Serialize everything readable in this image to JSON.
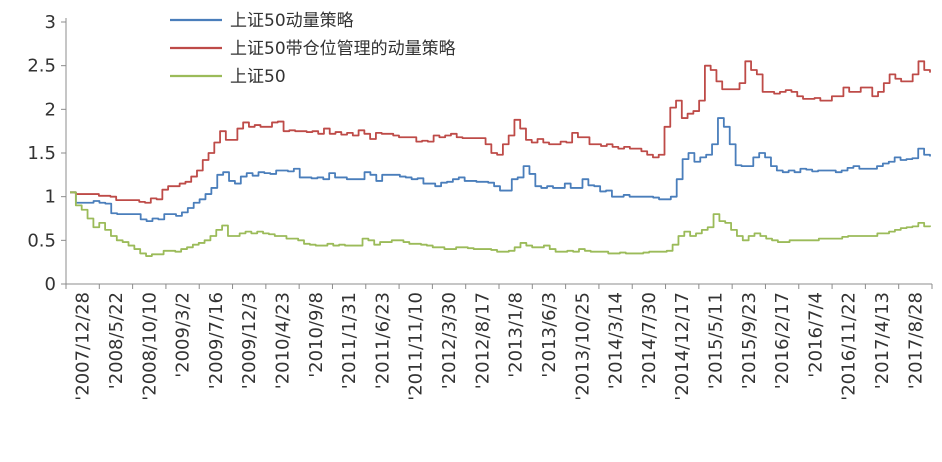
{
  "chart_data": {
    "type": "line",
    "ylim": [
      0,
      3
    ],
    "yticks": [
      0,
      0.5,
      1,
      1.5,
      2,
      2.5,
      3
    ],
    "ytick_labels": [
      "0",
      "0.5",
      "1",
      "1.5",
      "2",
      "2.5",
      "3"
    ],
    "xtick_labels": [
      "'2007/12/28",
      "'2008/5/22",
      "'2008/10/10",
      "'2009/3/2",
      "'2009/7/16",
      "'2009/12/3",
      "'2010/4/23",
      "'2010/9/8",
      "'2011/1/31",
      "'2011/6/23",
      "'2011/11/10",
      "'2012/3/30",
      "'2012/8/17",
      "'2013/1/8",
      "'2013/6/3",
      "'2013/10/25",
      "'2014/3/14",
      "'2014/7/30",
      "'2014/12/17",
      "'2015/5/11",
      "'2015/9/23",
      "'2016/2/17",
      "'2016/7/4",
      "'2016/11/22",
      "'2017/4/13",
      "'2017/8/28"
    ],
    "grid": false,
    "legend_position": "top-left",
    "series": [
      {
        "name": "上证50动量策略",
        "color": "#4a7ebb",
        "values": [
          1.05,
          0.93,
          0.93,
          0.93,
          0.95,
          0.93,
          0.92,
          0.81,
          0.8,
          0.8,
          0.8,
          0.8,
          0.74,
          0.72,
          0.75,
          0.74,
          0.8,
          0.8,
          0.78,
          0.82,
          0.87,
          0.93,
          0.97,
          1.03,
          1.1,
          1.25,
          1.28,
          1.18,
          1.15,
          1.23,
          1.27,
          1.24,
          1.28,
          1.27,
          1.26,
          1.3,
          1.3,
          1.29,
          1.32,
          1.22,
          1.22,
          1.21,
          1.22,
          1.2,
          1.27,
          1.22,
          1.22,
          1.2,
          1.2,
          1.2,
          1.28,
          1.25,
          1.18,
          1.25,
          1.25,
          1.25,
          1.23,
          1.22,
          1.2,
          1.21,
          1.15,
          1.15,
          1.12,
          1.16,
          1.17,
          1.2,
          1.22,
          1.18,
          1.18,
          1.17,
          1.17,
          1.16,
          1.12,
          1.07,
          1.07,
          1.2,
          1.22,
          1.35,
          1.26,
          1.12,
          1.1,
          1.12,
          1.1,
          1.1,
          1.15,
          1.1,
          1.1,
          1.2,
          1.13,
          1.12,
          1.06,
          1.07,
          1.0,
          1.0,
          1.02,
          1.0,
          1.0,
          1.0,
          1.0,
          0.99,
          0.97,
          0.97,
          1.0,
          1.2,
          1.43,
          1.5,
          1.4,
          1.45,
          1.48,
          1.6,
          1.9,
          1.8,
          1.6,
          1.36,
          1.35,
          1.35,
          1.45,
          1.5,
          1.45,
          1.35,
          1.3,
          1.28,
          1.3,
          1.28,
          1.32,
          1.31,
          1.29,
          1.3,
          1.3,
          1.3,
          1.28,
          1.3,
          1.33,
          1.35,
          1.32,
          1.32,
          1.32,
          1.35,
          1.38,
          1.4,
          1.45,
          1.42,
          1.43,
          1.44,
          1.55,
          1.48,
          1.46
        ]
      },
      {
        "name": "上证50带仓位管理的动量策略",
        "color": "#be4b48",
        "values": [
          1.05,
          1.03,
          1.03,
          1.03,
          1.03,
          1.01,
          1.01,
          1.0,
          0.96,
          0.96,
          0.96,
          0.96,
          0.94,
          0.93,
          0.98,
          0.97,
          1.08,
          1.12,
          1.12,
          1.15,
          1.17,
          1.23,
          1.3,
          1.42,
          1.5,
          1.62,
          1.75,
          1.65,
          1.65,
          1.78,
          1.85,
          1.8,
          1.82,
          1.8,
          1.8,
          1.85,
          1.86,
          1.75,
          1.76,
          1.75,
          1.75,
          1.74,
          1.75,
          1.72,
          1.78,
          1.72,
          1.74,
          1.71,
          1.73,
          1.7,
          1.76,
          1.72,
          1.66,
          1.73,
          1.72,
          1.72,
          1.7,
          1.68,
          1.68,
          1.68,
          1.63,
          1.64,
          1.63,
          1.7,
          1.68,
          1.7,
          1.72,
          1.68,
          1.67,
          1.67,
          1.67,
          1.67,
          1.6,
          1.5,
          1.48,
          1.6,
          1.7,
          1.88,
          1.78,
          1.65,
          1.62,
          1.66,
          1.62,
          1.6,
          1.6,
          1.63,
          1.62,
          1.73,
          1.68,
          1.68,
          1.6,
          1.6,
          1.58,
          1.6,
          1.57,
          1.55,
          1.57,
          1.55,
          1.55,
          1.52,
          1.48,
          1.45,
          1.48,
          1.8,
          2.02,
          2.1,
          1.9,
          1.95,
          1.98,
          2.1,
          2.5,
          2.45,
          2.32,
          2.23,
          2.23,
          2.23,
          2.3,
          2.55,
          2.45,
          2.4,
          2.2,
          2.2,
          2.18,
          2.2,
          2.22,
          2.2,
          2.15,
          2.12,
          2.12,
          2.13,
          2.1,
          2.1,
          2.15,
          2.15,
          2.25,
          2.2,
          2.2,
          2.25,
          2.25,
          2.15,
          2.2,
          2.3,
          2.4,
          2.35,
          2.32,
          2.32,
          2.4,
          2.55,
          2.45,
          2.42
        ]
      },
      {
        "name": "上证50",
        "color": "#9bbb59",
        "values": [
          1.05,
          0.9,
          0.85,
          0.75,
          0.65,
          0.7,
          0.62,
          0.55,
          0.5,
          0.48,
          0.44,
          0.4,
          0.35,
          0.32,
          0.34,
          0.34,
          0.38,
          0.38,
          0.37,
          0.4,
          0.42,
          0.45,
          0.47,
          0.5,
          0.55,
          0.62,
          0.67,
          0.55,
          0.55,
          0.58,
          0.6,
          0.58,
          0.6,
          0.58,
          0.57,
          0.55,
          0.55,
          0.52,
          0.52,
          0.5,
          0.46,
          0.45,
          0.44,
          0.44,
          0.46,
          0.44,
          0.45,
          0.44,
          0.44,
          0.44,
          0.52,
          0.5,
          0.45,
          0.48,
          0.48,
          0.5,
          0.5,
          0.48,
          0.46,
          0.46,
          0.45,
          0.44,
          0.42,
          0.42,
          0.4,
          0.4,
          0.42,
          0.42,
          0.41,
          0.4,
          0.4,
          0.4,
          0.39,
          0.37,
          0.37,
          0.38,
          0.42,
          0.47,
          0.44,
          0.42,
          0.42,
          0.44,
          0.4,
          0.37,
          0.37,
          0.38,
          0.37,
          0.4,
          0.38,
          0.37,
          0.37,
          0.37,
          0.35,
          0.35,
          0.36,
          0.35,
          0.35,
          0.35,
          0.36,
          0.37,
          0.37,
          0.37,
          0.38,
          0.45,
          0.55,
          0.6,
          0.55,
          0.58,
          0.62,
          0.65,
          0.8,
          0.72,
          0.7,
          0.62,
          0.55,
          0.5,
          0.55,
          0.58,
          0.55,
          0.52,
          0.5,
          0.48,
          0.48,
          0.5,
          0.5,
          0.5,
          0.5,
          0.5,
          0.52,
          0.52,
          0.52,
          0.52,
          0.54,
          0.55,
          0.55,
          0.55,
          0.55,
          0.55,
          0.58,
          0.58,
          0.6,
          0.62,
          0.64,
          0.65,
          0.66,
          0.7,
          0.66,
          0.67
        ]
      }
    ]
  }
}
